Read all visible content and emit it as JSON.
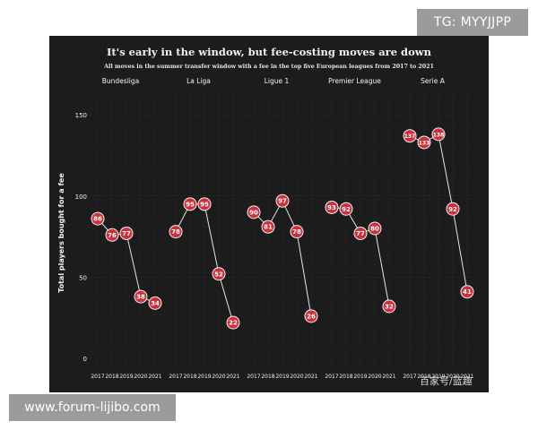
{
  "watermarks": {
    "top_label": "TG: MYYJJPP",
    "bottom_label": "www.forum-lijibo.com",
    "source_label": "百家号/蓝趣"
  },
  "colors": {
    "background": "#1c1c1c",
    "marker_fill": "#c8323c",
    "marker_stroke": "#f2f2f2",
    "text": "#f2f2f2",
    "grid": "#3a3a3a"
  },
  "chart_data": {
    "type": "line",
    "title": "It's early in the window, but fee-costing moves are down",
    "subtitle": "All moves in the summer transfer window with a fee in the top five European leagues from 2017 to 2021",
    "ylabel": "Total players bought for a fee",
    "ylim": [
      0,
      160
    ],
    "yticks": [
      0,
      50,
      100,
      150
    ],
    "x": [
      "2017",
      "2018",
      "2019",
      "2020",
      "2021"
    ],
    "grid": true,
    "legend": "none",
    "panels": [
      {
        "name": "Bundesliga",
        "values": [
          86,
          76,
          77,
          38,
          34
        ]
      },
      {
        "name": "La Liga",
        "values": [
          78,
          95,
          95,
          52,
          22
        ]
      },
      {
        "name": "Ligue 1",
        "values": [
          90,
          81,
          97,
          78,
          26
        ]
      },
      {
        "name": "Premier League",
        "values": [
          93,
          92,
          77,
          80,
          32
        ]
      },
      {
        "name": "Serie A",
        "values": [
          137,
          133,
          138,
          92,
          41
        ]
      }
    ]
  }
}
